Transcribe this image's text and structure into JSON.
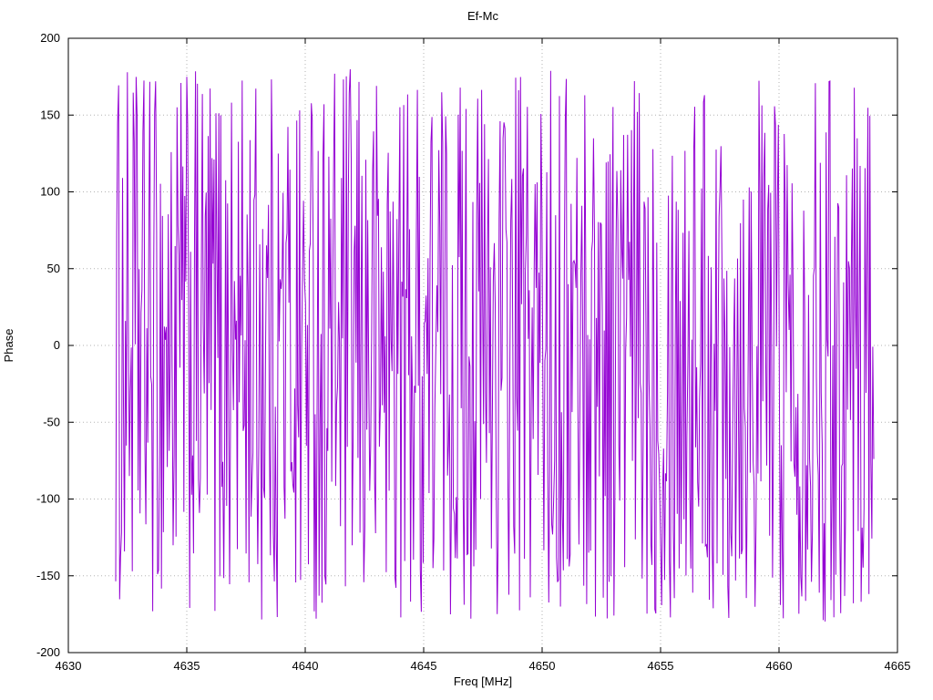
{
  "chart_data": {
    "type": "line",
    "title": "Ef-Mc",
    "xlabel": "Freq [MHz]",
    "ylabel": "Phase",
    "xlim": [
      4630,
      4665
    ],
    "ylim": [
      -200,
      200
    ],
    "xticks": [
      4630,
      4635,
      4640,
      4645,
      4650,
      4655,
      4660,
      4665
    ],
    "yticks": [
      -200,
      -150,
      -100,
      -50,
      0,
      50,
      100,
      150,
      200
    ],
    "grid": true,
    "legend_position": "none",
    "line_color": "#9400D3",
    "grid_color": "#B3B3B3",
    "border_color": "#000000",
    "background": "#FFFFFF",
    "series": [
      {
        "name": "phase",
        "x_start": 4632.0,
        "x_end": 4664.0,
        "num_points": 780,
        "value_model": "uniform-random-wrapped-phase",
        "y_min": -180,
        "y_max": 180,
        "seed": 1234,
        "description": "Interferometric fringe phase (Ef-Mc baseline): densely wrapped phase noise uniformly filling -180..180 deg across 4632-4664 MHz; individual samples not resolvable at screenshot scale."
      }
    ]
  }
}
